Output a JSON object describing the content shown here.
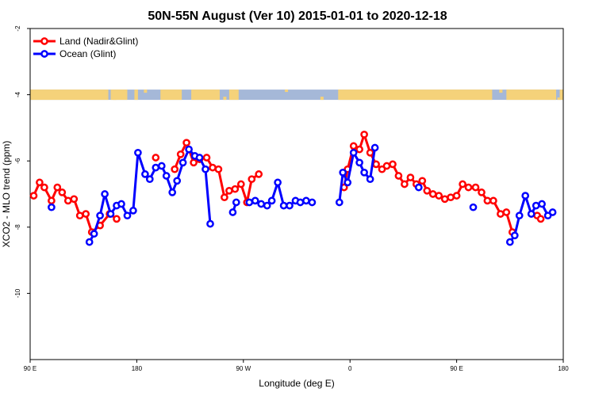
{
  "chart_data": {
    "type": "line",
    "title": "50N-55N August (Ver 10)   2015-01-01 to 2020-12-18",
    "xlabel": "Longitude (deg E)",
    "ylabel": "XCO2 - MLO trend (ppm)",
    "xlim": [
      90,
      540
    ],
    "ylim": [
      -12,
      -2
    ],
    "x_ticks": [
      {
        "value": 90,
        "label": "90 E"
      },
      {
        "value": 180,
        "label": "180"
      },
      {
        "value": 270,
        "label": "90 W"
      },
      {
        "value": 360,
        "label": "0"
      },
      {
        "value": 450,
        "label": "90 E"
      },
      {
        "value": 540,
        "label": "180"
      }
    ],
    "y_ticks": [
      {
        "value": -2,
        "label": "-2"
      },
      {
        "value": -4,
        "label": "-4"
      },
      {
        "value": -6,
        "label": "-6"
      },
      {
        "value": -8,
        "label": "-8"
      },
      {
        "value": -10,
        "label": "-10"
      }
    ],
    "legend": {
      "placement": "top-left",
      "entries": [
        {
          "label": "Land (Nadir&Glint)",
          "color": "#ff0000"
        },
        {
          "label": "Ocean (Glint)",
          "color": "#0000ff"
        }
      ]
    },
    "land_band": {
      "y": -4,
      "land_color": "#f5d27a",
      "ocean_color": "#a5b8d8"
    },
    "series": [
      {
        "name": "Land (Nadir&Glint)",
        "color": "#ff0000",
        "segments": [
          [
            {
              "x": 93,
              "y": -7.05
            },
            {
              "x": 98,
              "y": -6.65
            },
            {
              "x": 102,
              "y": -6.8
            },
            {
              "x": 108,
              "y": -7.2
            },
            {
              "x": 113,
              "y": -6.8
            },
            {
              "x": 117,
              "y": -6.95
            },
            {
              "x": 122,
              "y": -7.2
            },
            {
              "x": 127,
              "y": -7.15
            },
            {
              "x": 132,
              "y": -7.65
            },
            {
              "x": 137,
              "y": -7.6
            },
            {
              "x": 142,
              "y": -8.15
            },
            {
              "x": 149,
              "y": -7.95
            },
            {
              "x": 157,
              "y": -7.6
            },
            {
              "x": 163,
              "y": -7.75
            }
          ],
          [
            {
              "x": 196,
              "y": -5.9
            }
          ],
          [
            {
              "x": 212,
              "y": -6.25
            },
            {
              "x": 217,
              "y": -5.8
            },
            {
              "x": 222,
              "y": -5.45
            },
            {
              "x": 228,
              "y": -6.05
            },
            {
              "x": 233,
              "y": -5.95
            },
            {
              "x": 239,
              "y": -5.9
            },
            {
              "x": 244,
              "y": -6.2
            },
            {
              "x": 249,
              "y": -6.25
            },
            {
              "x": 254,
              "y": -7.1
            },
            {
              "x": 258,
              "y": -6.9
            },
            {
              "x": 263,
              "y": -6.85
            },
            {
              "x": 268,
              "y": -6.7
            },
            {
              "x": 273,
              "y": -7.25
            },
            {
              "x": 277,
              "y": -6.55
            },
            {
              "x": 283,
              "y": -6.4
            }
          ],
          [
            {
              "x": 355,
              "y": -6.8
            },
            {
              "x": 358,
              "y": -6.25
            },
            {
              "x": 363,
              "y": -5.55
            },
            {
              "x": 368,
              "y": -5.65
            },
            {
              "x": 372,
              "y": -5.2
            },
            {
              "x": 377,
              "y": -5.75
            },
            {
              "x": 382,
              "y": -6.1
            },
            {
              "x": 387,
              "y": -6.25
            },
            {
              "x": 391,
              "y": -6.15
            },
            {
              "x": 396,
              "y": -6.1
            },
            {
              "x": 401,
              "y": -6.45
            },
            {
              "x": 406,
              "y": -6.7
            },
            {
              "x": 411,
              "y": -6.5
            },
            {
              "x": 416,
              "y": -6.7
            },
            {
              "x": 421,
              "y": -6.6
            },
            {
              "x": 425,
              "y": -6.9
            },
            {
              "x": 430,
              "y": -7.0
            },
            {
              "x": 435,
              "y": -7.05
            },
            {
              "x": 440,
              "y": -7.15
            },
            {
              "x": 445,
              "y": -7.1
            },
            {
              "x": 450,
              "y": -7.05
            },
            {
              "x": 455,
              "y": -6.7
            },
            {
              "x": 460,
              "y": -6.8
            },
            {
              "x": 466,
              "y": -6.8
            },
            {
              "x": 471,
              "y": -6.95
            },
            {
              "x": 476,
              "y": -7.2
            },
            {
              "x": 481,
              "y": -7.2
            },
            {
              "x": 487,
              "y": -7.6
            },
            {
              "x": 492,
              "y": -7.55
            },
            {
              "x": 497,
              "y": -8.15
            }
          ],
          [
            {
              "x": 518,
              "y": -7.65
            },
            {
              "x": 521,
              "y": -7.75
            }
          ]
        ]
      },
      {
        "name": "Ocean (Glint)",
        "color": "#0000ff",
        "segments": [
          [
            {
              "x": 108,
              "y": -7.4
            }
          ],
          [
            {
              "x": 140,
              "y": -8.45
            },
            {
              "x": 144,
              "y": -8.2
            },
            {
              "x": 149,
              "y": -7.65
            },
            {
              "x": 153,
              "y": -7.0
            },
            {
              "x": 158,
              "y": -7.6
            },
            {
              "x": 163,
              "y": -7.35
            },
            {
              "x": 167,
              "y": -7.3
            },
            {
              "x": 172,
              "y": -7.65
            },
            {
              "x": 177,
              "y": -7.5
            },
            {
              "x": 181,
              "y": -5.75
            },
            {
              "x": 187,
              "y": -6.4
            },
            {
              "x": 191,
              "y": -6.55
            },
            {
              "x": 196,
              "y": -6.2
            },
            {
              "x": 201,
              "y": -6.15
            },
            {
              "x": 205,
              "y": -6.45
            },
            {
              "x": 210,
              "y": -6.95
            },
            {
              "x": 214,
              "y": -6.6
            },
            {
              "x": 219,
              "y": -6.05
            },
            {
              "x": 224,
              "y": -5.65
            },
            {
              "x": 229,
              "y": -5.85
            },
            {
              "x": 233,
              "y": -5.9
            },
            {
              "x": 238,
              "y": -6.25
            },
            {
              "x": 242,
              "y": -7.9
            }
          ],
          [
            {
              "x": 261,
              "y": -7.55
            },
            {
              "x": 264,
              "y": -7.25
            }
          ],
          [
            {
              "x": 275,
              "y": -7.25
            },
            {
              "x": 280,
              "y": -7.2
            },
            {
              "x": 285,
              "y": -7.3
            },
            {
              "x": 290,
              "y": -7.35
            },
            {
              "x": 294,
              "y": -7.2
            },
            {
              "x": 299,
              "y": -6.65
            },
            {
              "x": 304,
              "y": -7.35
            },
            {
              "x": 309,
              "y": -7.35
            },
            {
              "x": 314,
              "y": -7.2
            },
            {
              "x": 318,
              "y": -7.25
            },
            {
              "x": 323,
              "y": -7.2
            },
            {
              "x": 328,
              "y": -7.25
            }
          ],
          [
            {
              "x": 351,
              "y": -7.25
            },
            {
              "x": 354,
              "y": -6.35
            },
            {
              "x": 358,
              "y": -6.65
            },
            {
              "x": 363,
              "y": -5.75
            },
            {
              "x": 368,
              "y": -6.05
            },
            {
              "x": 372,
              "y": -6.35
            },
            {
              "x": 377,
              "y": -6.55
            },
            {
              "x": 381,
              "y": -5.6
            }
          ],
          [
            {
              "x": 418,
              "y": -6.8
            }
          ],
          [
            {
              "x": 464,
              "y": -7.4
            }
          ],
          [
            {
              "x": 495,
              "y": -8.45
            },
            {
              "x": 499,
              "y": -8.25
            },
            {
              "x": 503,
              "y": -7.65
            },
            {
              "x": 508,
              "y": -7.05
            },
            {
              "x": 513,
              "y": -7.6
            },
            {
              "x": 517,
              "y": -7.35
            },
            {
              "x": 522,
              "y": -7.3
            },
            {
              "x": 527,
              "y": -7.65
            },
            {
              "x": 531,
              "y": -7.55
            }
          ]
        ]
      }
    ]
  }
}
